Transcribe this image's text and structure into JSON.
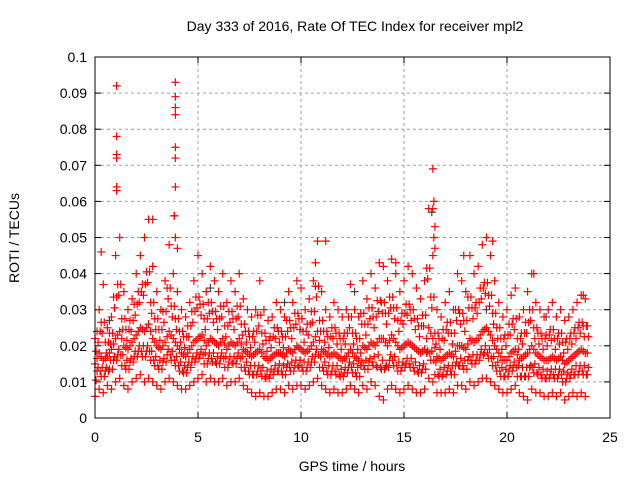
{
  "chart_data": {
    "type": "scatter",
    "title": "Day 333 of 2016, Rate Of TEC Index for receiver mpl2",
    "xlabel": "GPS time / hours",
    "ylabel": "ROTI / TECUs",
    "xlim": [
      0,
      25
    ],
    "ylim": [
      0,
      0.1
    ],
    "grid": true,
    "xticks": [
      "0",
      "5",
      "10",
      "15",
      "20",
      "25"
    ],
    "xtick_values": [
      0,
      5,
      10,
      15,
      20,
      25
    ],
    "yticks": [
      "0",
      "0.01",
      "0.02",
      "0.03",
      "0.04",
      "0.05",
      "0.06",
      "0.07",
      "0.08",
      "0.09",
      "0.1"
    ],
    "ytick_values": [
      0,
      0.01,
      0.02,
      0.03,
      0.04,
      0.05,
      0.06,
      0.07,
      0.08,
      0.09,
      0.1
    ],
    "colors": {
      "primary": "#ff0000",
      "secondary": "#404040",
      "grid": "#a0a0a0"
    },
    "band": {
      "x_start": 0,
      "x_step": 0.2,
      "high": [
        0.022,
        0.03,
        0.037,
        0.025,
        0.028,
        0.045,
        0.05,
        0.035,
        0.03,
        0.033,
        0.04,
        0.045,
        0.05,
        0.055,
        0.042,
        0.035,
        0.03,
        0.038,
        0.048,
        0.04,
        0.035,
        0.03,
        0.028,
        0.032,
        0.038,
        0.045,
        0.04,
        0.035,
        0.042,
        0.038,
        0.035,
        0.04,
        0.032,
        0.038,
        0.035,
        0.04,
        0.033,
        0.03,
        0.028,
        0.03,
        0.038,
        0.03,
        0.027,
        0.028,
        0.032,
        0.03,
        0.028,
        0.035,
        0.032,
        0.038,
        0.036,
        0.03,
        0.033,
        0.038,
        0.049,
        0.035,
        0.03,
        0.028,
        0.032,
        0.03,
        0.028,
        0.03,
        0.037,
        0.03,
        0.028,
        0.038,
        0.033,
        0.04,
        0.036,
        0.043,
        0.042,
        0.038,
        0.044,
        0.04,
        0.035,
        0.038,
        0.042,
        0.04,
        0.036,
        0.033,
        0.038,
        0.058,
        0.045,
        0.03,
        0.028,
        0.032,
        0.035,
        0.03,
        0.04,
        0.038,
        0.035,
        0.045,
        0.04,
        0.042,
        0.048,
        0.05,
        0.045,
        0.038,
        0.032,
        0.028,
        0.03,
        0.034,
        0.036,
        0.028,
        0.03,
        0.035,
        0.04,
        0.032,
        0.03,
        0.028,
        0.03,
        0.032,
        0.028,
        0.03,
        0.027,
        0.028,
        0.03,
        0.032,
        0.034,
        0.033
      ],
      "mid": [
        0.015,
        0.018,
        0.016,
        0.017,
        0.019,
        0.022,
        0.024,
        0.02,
        0.019,
        0.021,
        0.023,
        0.025,
        0.024,
        0.026,
        0.022,
        0.02,
        0.019,
        0.021,
        0.024,
        0.022,
        0.02,
        0.018,
        0.017,
        0.019,
        0.021,
        0.022,
        0.023,
        0.02,
        0.022,
        0.021,
        0.02,
        0.022,
        0.019,
        0.021,
        0.02,
        0.022,
        0.019,
        0.018,
        0.017,
        0.018,
        0.019,
        0.017,
        0.016,
        0.017,
        0.018,
        0.018,
        0.017,
        0.019,
        0.018,
        0.02,
        0.019,
        0.018,
        0.019,
        0.021,
        0.024,
        0.019,
        0.018,
        0.017,
        0.018,
        0.017,
        0.016,
        0.017,
        0.019,
        0.017,
        0.016,
        0.02,
        0.019,
        0.021,
        0.02,
        0.022,
        0.022,
        0.02,
        0.023,
        0.021,
        0.019,
        0.02,
        0.021,
        0.02,
        0.019,
        0.018,
        0.019,
        0.025,
        0.022,
        0.017,
        0.016,
        0.017,
        0.018,
        0.017,
        0.02,
        0.02,
        0.019,
        0.022,
        0.021,
        0.022,
        0.024,
        0.025,
        0.023,
        0.02,
        0.018,
        0.016,
        0.016,
        0.018,
        0.019,
        0.016,
        0.017,
        0.018,
        0.02,
        0.018,
        0.017,
        0.016,
        0.016,
        0.017,
        0.016,
        0.017,
        0.015,
        0.016,
        0.017,
        0.018,
        0.019,
        0.018
      ],
      "low": [
        0.006,
        0.008,
        0.007,
        0.009,
        0.008,
        0.01,
        0.011,
        0.009,
        0.008,
        0.01,
        0.011,
        0.012,
        0.01,
        0.011,
        0.01,
        0.009,
        0.008,
        0.01,
        0.011,
        0.01,
        0.009,
        0.008,
        0.008,
        0.009,
        0.01,
        0.011,
        0.012,
        0.01,
        0.011,
        0.01,
        0.01,
        0.011,
        0.009,
        0.01,
        0.01,
        0.011,
        0.009,
        0.008,
        0.007,
        0.006,
        0.007,
        0.006,
        0.006,
        0.007,
        0.008,
        0.008,
        0.007,
        0.009,
        0.008,
        0.009,
        0.009,
        0.008,
        0.009,
        0.01,
        0.011,
        0.009,
        0.008,
        0.007,
        0.008,
        0.007,
        0.007,
        0.008,
        0.009,
        0.008,
        0.007,
        0.009,
        0.008,
        0.01,
        0.009,
        0.006,
        0.005,
        0.008,
        0.009,
        0.008,
        0.007,
        0.008,
        0.009,
        0.008,
        0.007,
        0.007,
        0.008,
        0.011,
        0.01,
        0.007,
        0.007,
        0.007,
        0.008,
        0.007,
        0.009,
        0.009,
        0.008,
        0.01,
        0.009,
        0.01,
        0.011,
        0.011,
        0.01,
        0.009,
        0.008,
        0.007,
        0.007,
        0.008,
        0.009,
        0.007,
        0.006,
        0.005,
        0.008,
        0.007,
        0.007,
        0.006,
        0.006,
        0.007,
        0.006,
        0.007,
        0.005,
        0.006,
        0.007,
        0.006,
        0.007,
        0.006
      ]
    },
    "outliers": [
      [
        1.05,
        0.092
      ],
      [
        1.05,
        0.078
      ],
      [
        1.05,
        0.073
      ],
      [
        1.05,
        0.072
      ],
      [
        1.05,
        0.064
      ],
      [
        1.05,
        0.063
      ],
      [
        3.9,
        0.093
      ],
      [
        3.9,
        0.089
      ],
      [
        3.9,
        0.086
      ],
      [
        3.9,
        0.084
      ],
      [
        3.9,
        0.075
      ],
      [
        3.9,
        0.072
      ],
      [
        3.9,
        0.064
      ],
      [
        3.85,
        0.056
      ],
      [
        16.4,
        0.069
      ],
      [
        16.45,
        0.06
      ],
      [
        16.4,
        0.058
      ],
      [
        16.5,
        0.053
      ],
      [
        16.45,
        0.05
      ],
      [
        16.5,
        0.047
      ],
      [
        0.3,
        0.046
      ],
      [
        11.2,
        0.049
      ],
      [
        19.3,
        0.049
      ],
      [
        17.9,
        0.045
      ],
      [
        14.6,
        0.043
      ],
      [
        21.3,
        0.04
      ],
      [
        2.8,
        0.055
      ],
      [
        10.7,
        0.043
      ],
      [
        3.9,
        0.05
      ],
      [
        4.0,
        0.047
      ]
    ],
    "secondary_points": [
      [
        1.05,
        0.063
      ],
      [
        3.85,
        0.056
      ],
      [
        16.35,
        0.057
      ],
      [
        0.7,
        0.027
      ],
      [
        23.7,
        0.034
      ],
      [
        12.6,
        0.035
      ],
      [
        9.2,
        0.032
      ],
      [
        19.0,
        0.03
      ],
      [
        5.6,
        0.036
      ],
      [
        21.9,
        0.028
      ]
    ]
  }
}
